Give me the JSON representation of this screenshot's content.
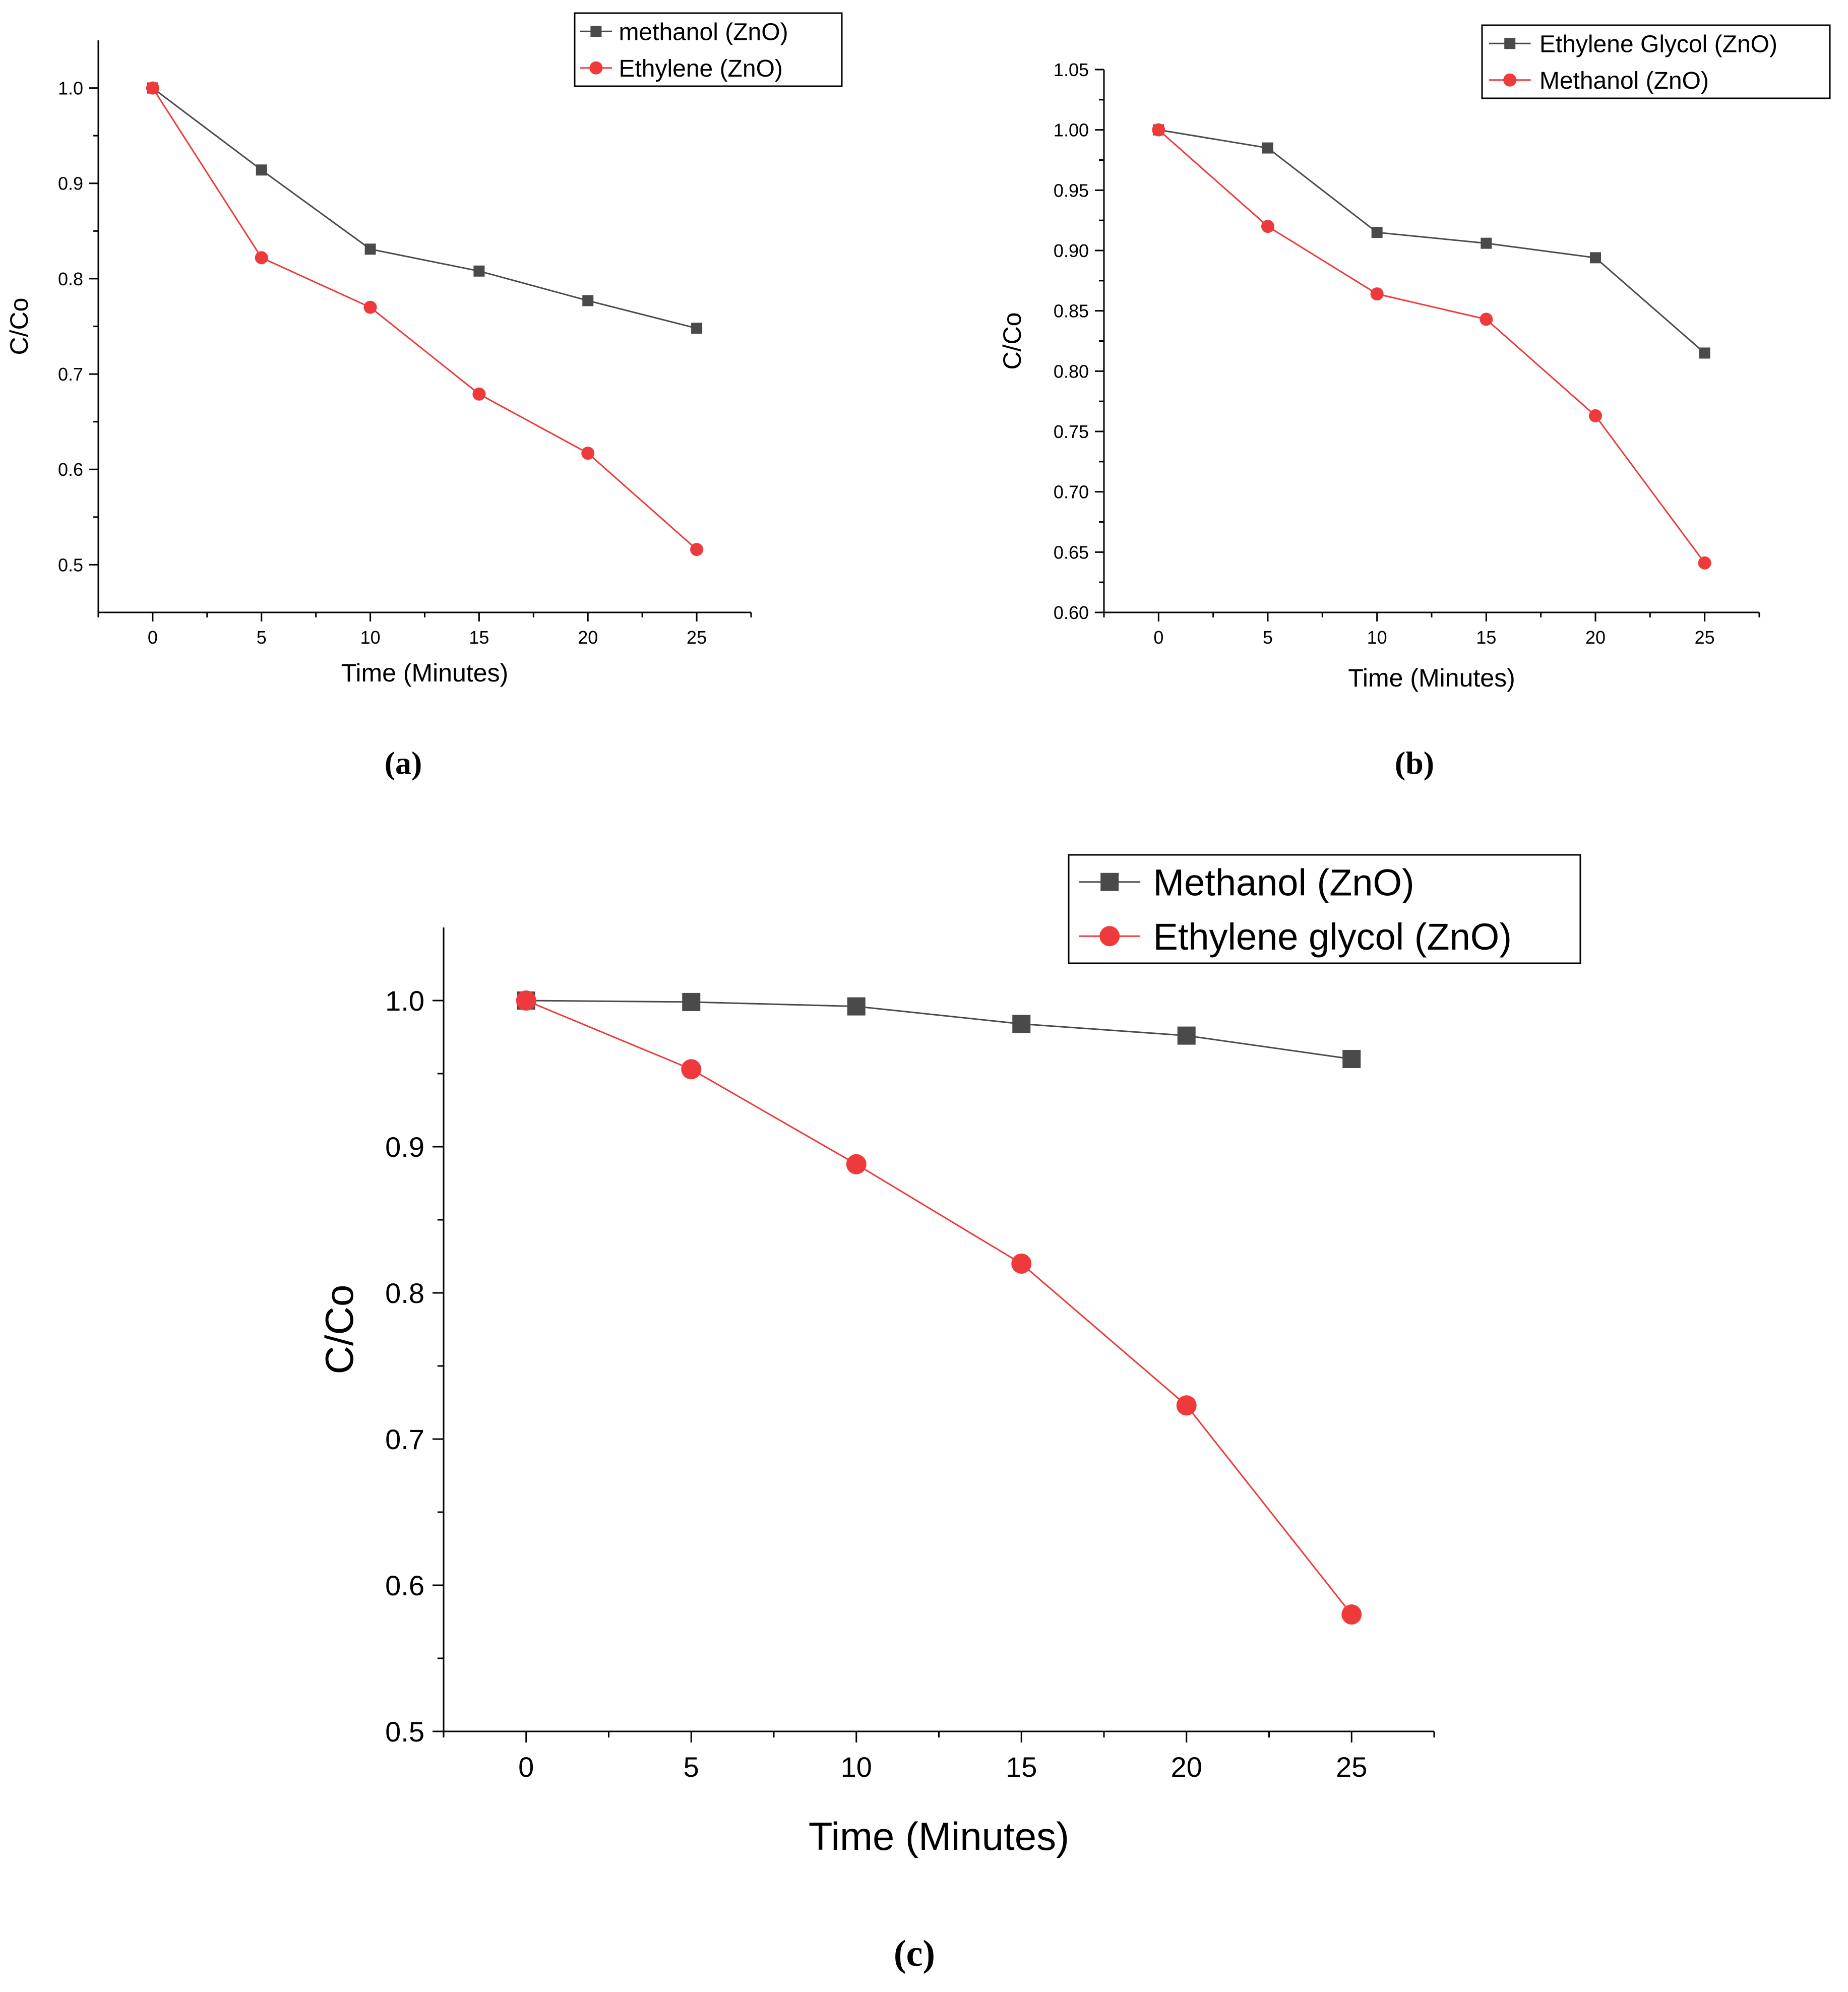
{
  "figure": {
    "panel_labels": [
      "(a)",
      "(b)",
      "(c)"
    ]
  },
  "colors": {
    "series_dark": "#4a4a4a",
    "series_red": "#ee3a3a"
  },
  "chart_data": [
    {
      "id": "a",
      "type": "line",
      "xlabel": "Time (Minutes)",
      "ylabel": "C/Co",
      "xlim": [
        -2.5,
        27.5
      ],
      "ylim": [
        0.45,
        1.05
      ],
      "xticks": [
        0,
        5,
        10,
        15,
        20,
        25
      ],
      "xtick_labels": [
        "0",
        "5",
        "10",
        "15",
        "20",
        "25"
      ],
      "yticks": [
        0.5,
        0.6,
        0.7,
        0.8,
        0.9,
        1.0
      ],
      "ytick_labels": [
        "0.5",
        "0.6",
        "0.7",
        "0.8",
        "0.9",
        "1.0"
      ],
      "legend_position": "top-right",
      "x": [
        0,
        5,
        10,
        15,
        20,
        25
      ],
      "series": [
        {
          "name": "methanol (ZnO)",
          "marker": "square",
          "color": "#4a4a4a",
          "values": [
            1.0,
            0.914,
            0.831,
            0.808,
            0.777,
            0.748
          ]
        },
        {
          "name": "Ethylene (ZnO)",
          "marker": "circle",
          "color": "#ee3a3a",
          "values": [
            1.0,
            0.822,
            0.77,
            0.679,
            0.617,
            0.516
          ]
        }
      ]
    },
    {
      "id": "b",
      "type": "line",
      "xlabel": "Time (Minutes)",
      "ylabel": "C/Co",
      "xlim": [
        -2.5,
        27.5
      ],
      "ylim": [
        0.6,
        1.05
      ],
      "xticks": [
        0,
        5,
        10,
        15,
        20,
        25
      ],
      "xtick_labels": [
        "0",
        "5",
        "10",
        "15",
        "20",
        "25"
      ],
      "yticks": [
        0.6,
        0.65,
        0.7,
        0.75,
        0.8,
        0.85,
        0.9,
        0.95,
        1.0,
        1.05
      ],
      "ytick_labels": [
        "0.60",
        "0.65",
        "0.70",
        "0.75",
        "0.80",
        "0.85",
        "0.90",
        "0.95",
        "1.00",
        "1.05"
      ],
      "legend_position": "top-right",
      "x": [
        0,
        5,
        10,
        15,
        20,
        25
      ],
      "series": [
        {
          "name": "Ethylene Glycol (ZnO)",
          "marker": "square",
          "color": "#4a4a4a",
          "values": [
            1.0,
            0.985,
            0.915,
            0.906,
            0.894,
            0.815
          ]
        },
        {
          "name": "Methanol (ZnO)",
          "marker": "circle",
          "color": "#ee3a3a",
          "values": [
            1.0,
            0.92,
            0.864,
            0.843,
            0.763,
            0.641
          ]
        }
      ]
    },
    {
      "id": "c",
      "type": "line",
      "xlabel": "Time (Minutes)",
      "ylabel": "C/Co",
      "xlim": [
        -2.5,
        27.5
      ],
      "ylim": [
        0.5,
        1.05
      ],
      "xticks": [
        0,
        5,
        10,
        15,
        20,
        25
      ],
      "xtick_labels": [
        "0",
        "5",
        "10",
        "15",
        "20",
        "25"
      ],
      "yticks": [
        0.5,
        0.6,
        0.7,
        0.8,
        0.9,
        1.0
      ],
      "ytick_labels": [
        "0.5",
        "0.6",
        "0.7",
        "0.8",
        "0.9",
        "1.0"
      ],
      "legend_position": "top-right",
      "x": [
        0,
        5,
        10,
        15,
        20,
        25
      ],
      "series": [
        {
          "name": "Methanol (ZnO)",
          "marker": "square",
          "color": "#4a4a4a",
          "values": [
            1.0,
            0.999,
            0.996,
            0.984,
            0.976,
            0.96
          ]
        },
        {
          "name": "Ethylene glycol (ZnO)",
          "marker": "circle",
          "color": "#ee3a3a",
          "values": [
            1.0,
            0.953,
            0.888,
            0.82,
            0.723,
            0.58
          ]
        }
      ]
    }
  ]
}
